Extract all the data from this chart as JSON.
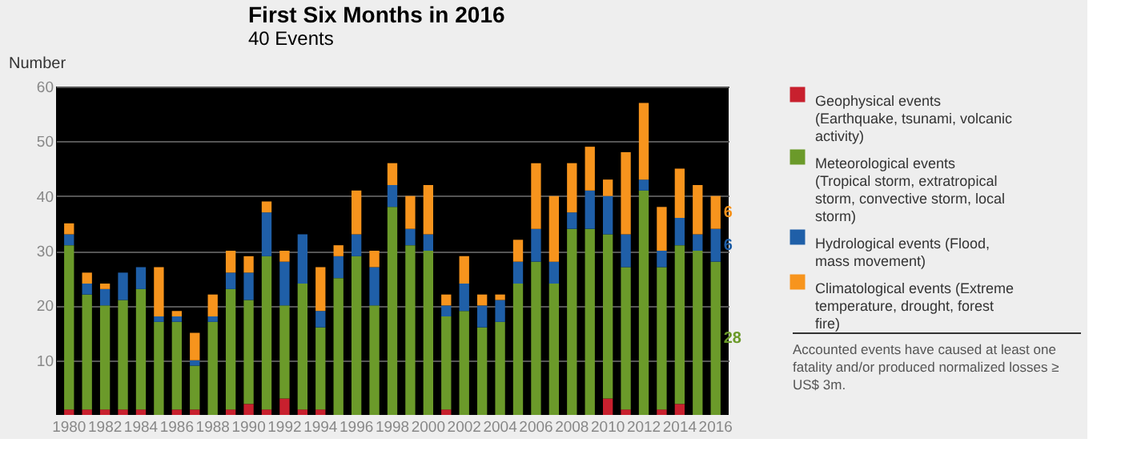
{
  "chart_data": {
    "type": "bar",
    "stacked": true,
    "title": "First Six Months in 2016",
    "subtitle": "40 Events",
    "ylabel": "Number",
    "categories": [
      "1980",
      null,
      "1982",
      null,
      "1984",
      null,
      "1986",
      null,
      "1988",
      null,
      "1990",
      null,
      "1992",
      null,
      "1994",
      null,
      "1996",
      null,
      "1998",
      null,
      "2000",
      null,
      "2002",
      null,
      "2004",
      null,
      "2006",
      null,
      "2008",
      null,
      "2010",
      null,
      "2012",
      null,
      "2014",
      null,
      "2016"
    ],
    "ylim": [
      0,
      60
    ],
    "yticks": [
      10,
      20,
      30,
      40,
      50,
      60
    ],
    "grid": "y",
    "legend": "right",
    "series": [
      {
        "name": "Geophysical events (Earthquake, tsunami, volcanic activity)",
        "color": "#c8202e",
        "values": [
          1,
          1,
          1,
          1,
          1,
          0,
          1,
          1,
          0,
          1,
          2,
          1,
          3,
          1,
          1,
          0,
          0,
          0,
          0,
          0,
          0,
          1,
          0,
          0,
          0,
          0,
          0,
          0,
          0,
          0,
          3,
          1,
          0,
          1,
          2,
          0,
          0
        ]
      },
      {
        "name": "Meteorological events (Tropical storm, extratropical storm, convective storm, local storm)",
        "color": "#6b9a2a",
        "values": [
          30,
          21,
          19,
          20,
          22,
          17,
          16,
          8,
          17,
          22,
          19,
          28,
          17,
          23,
          15,
          25,
          29,
          20,
          38,
          31,
          30,
          17,
          19,
          16,
          17,
          24,
          28,
          24,
          34,
          34,
          30,
          26,
          41,
          26,
          29,
          30,
          28
        ],
        "value_labels": [
          null,
          null,
          null,
          null,
          null,
          null,
          null,
          null,
          null,
          null,
          null,
          null,
          null,
          null,
          null,
          null,
          null,
          null,
          null,
          null,
          null,
          null,
          null,
          null,
          null,
          null,
          null,
          null,
          null,
          null,
          null,
          null,
          null,
          null,
          null,
          null,
          "28"
        ]
      },
      {
        "name": "Hydrological events (Flood, mass movement)",
        "color": "#1f5fa8",
        "values": [
          2,
          2,
          3,
          5,
          4,
          1,
          1,
          1,
          1,
          3,
          5,
          8,
          8,
          9,
          3,
          4,
          4,
          7,
          4,
          3,
          3,
          2,
          5,
          4,
          4,
          4,
          6,
          4,
          3,
          7,
          7,
          6,
          2,
          3,
          5,
          3,
          6
        ],
        "value_labels": [
          null,
          null,
          null,
          null,
          null,
          null,
          null,
          null,
          null,
          null,
          null,
          null,
          null,
          null,
          null,
          null,
          null,
          null,
          null,
          null,
          null,
          null,
          null,
          null,
          null,
          null,
          null,
          null,
          null,
          null,
          null,
          null,
          null,
          null,
          null,
          null,
          "6"
        ]
      },
      {
        "name": "Climatological events (Extreme temperature, drought, forest fire)",
        "color": "#f7941d",
        "values": [
          2,
          2,
          1,
          0,
          0,
          9,
          1,
          5,
          4,
          4,
          3,
          2,
          2,
          0,
          8,
          2,
          8,
          3,
          4,
          6,
          9,
          2,
          5,
          2,
          1,
          4,
          12,
          12,
          9,
          8,
          3,
          15,
          14,
          8,
          9,
          9,
          6
        ],
        "value_labels": [
          null,
          null,
          null,
          null,
          null,
          null,
          null,
          null,
          null,
          null,
          null,
          null,
          null,
          null,
          null,
          null,
          null,
          null,
          null,
          null,
          null,
          null,
          null,
          null,
          null,
          null,
          null,
          null,
          null,
          null,
          null,
          null,
          null,
          null,
          null,
          null,
          "6"
        ]
      }
    ],
    "annotations": [
      "Accounted events have caused at least one fatality and/or produced normalized losses ≥ US$ 3m."
    ]
  }
}
